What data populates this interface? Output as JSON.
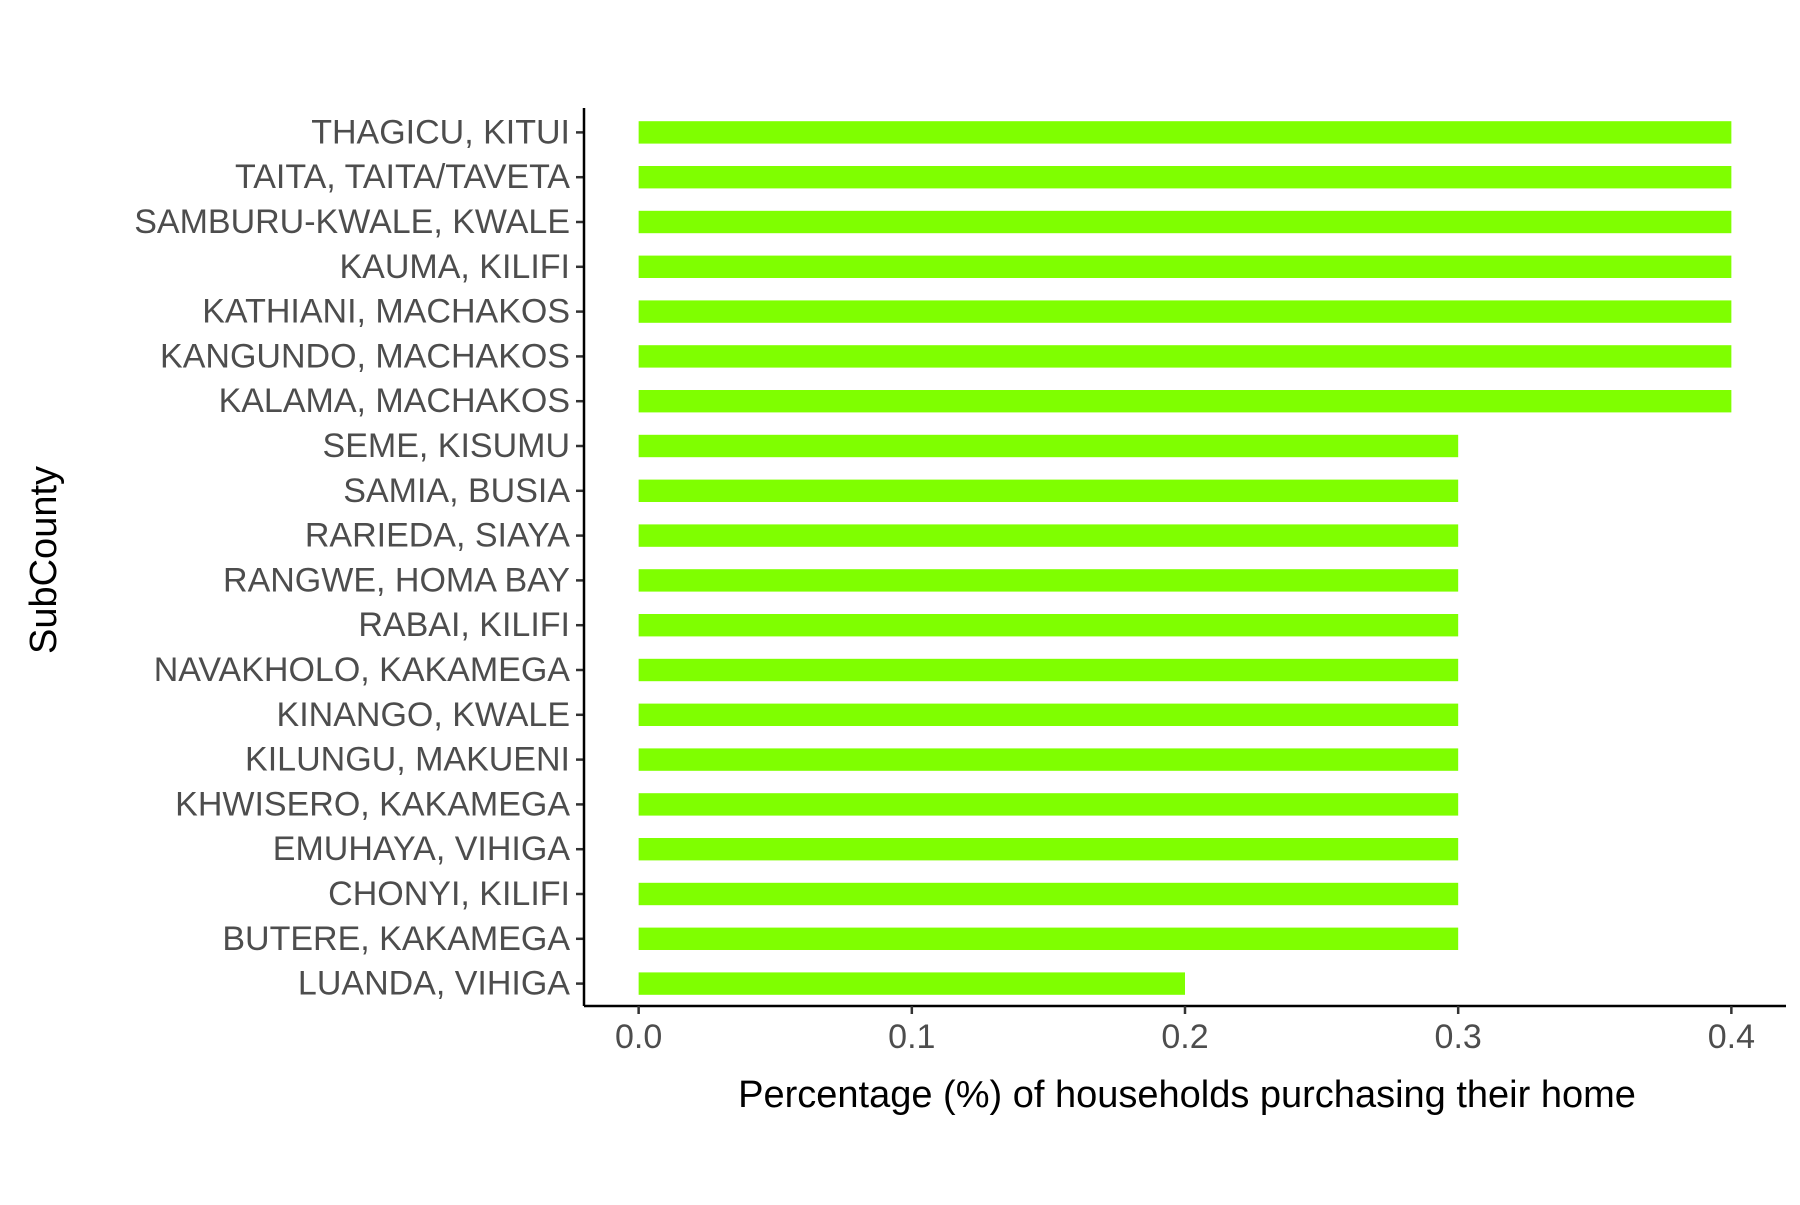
{
  "chart_data": {
    "type": "bar",
    "orientation": "horizontal",
    "title": "",
    "xlabel": "Percentage (%) of households purchasing their home",
    "ylabel": "SubCounty",
    "xlim": [
      -0.02,
      0.42
    ],
    "xticks": [
      0.0,
      0.1,
      0.2,
      0.3,
      0.4
    ],
    "xtick_labels": [
      "0.0",
      "0.1",
      "0.2",
      "0.3",
      "0.4"
    ],
    "grid": false,
    "legend": "none",
    "bar_color": "#7FFF00",
    "categories": [
      "THAGICU, KITUI",
      "TAITA, TAITA/TAVETA",
      "SAMBURU-KWALE, KWALE",
      "KAUMA, KILIFI",
      "KATHIANI, MACHAKOS",
      "KANGUNDO, MACHAKOS",
      "KALAMA, MACHAKOS",
      "SEME, KISUMU",
      "SAMIA, BUSIA",
      "RARIEDA, SIAYA",
      "RANGWE, HOMA BAY",
      "RABAI, KILIFI",
      "NAVAKHOLO, KAKAMEGA",
      "KINANGO, KWALE",
      "KILUNGU, MAKUENI",
      "KHWISERO, KAKAMEGA",
      "EMUHAYA, VIHIGA",
      "CHONYI, KILIFI",
      "BUTERE, KAKAMEGA",
      "LUANDA, VIHIGA"
    ],
    "values": [
      0.4,
      0.4,
      0.4,
      0.4,
      0.4,
      0.4,
      0.4,
      0.3,
      0.3,
      0.3,
      0.3,
      0.3,
      0.3,
      0.3,
      0.3,
      0.3,
      0.3,
      0.3,
      0.3,
      0.2
    ]
  }
}
